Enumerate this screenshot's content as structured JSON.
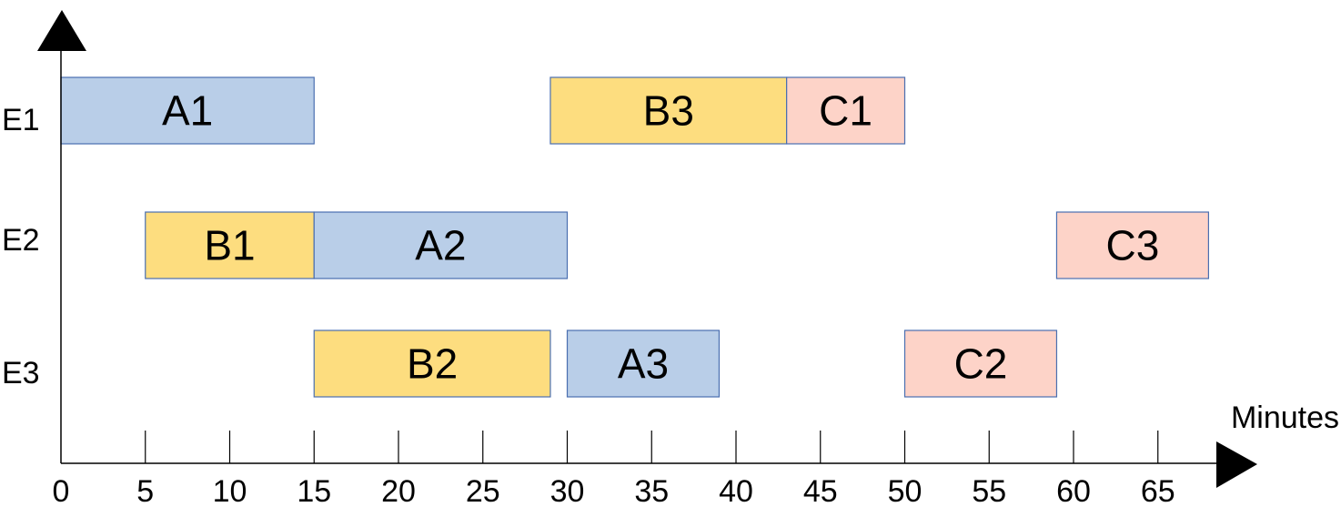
{
  "chart_data": {
    "type": "gantt",
    "xlabel": "Minutes",
    "ylabel": "",
    "rows": [
      "E1",
      "E2",
      "E3"
    ],
    "x_ticks": [
      0,
      5,
      10,
      15,
      20,
      25,
      30,
      35,
      40,
      45,
      50,
      55,
      60,
      65
    ],
    "xlim": [
      0,
      69.4
    ],
    "grid": false,
    "colors": {
      "A": "#b9cee8",
      "B": "#fddd7f",
      "C": "#fdd3c8",
      "border": "#4a6fb0"
    },
    "tasks": [
      {
        "label": "A1",
        "row": "E1",
        "start": 0,
        "end": 15,
        "group": "A"
      },
      {
        "label": "B3",
        "row": "E1",
        "start": 29,
        "end": 43,
        "group": "B"
      },
      {
        "label": "C1",
        "row": "E1",
        "start": 43,
        "end": 50,
        "group": "C"
      },
      {
        "label": "B1",
        "row": "E2",
        "start": 5,
        "end": 15,
        "group": "B"
      },
      {
        "label": "A2",
        "row": "E2",
        "start": 15,
        "end": 30,
        "group": "A"
      },
      {
        "label": "C3",
        "row": "E2",
        "start": 59,
        "end": 68,
        "group": "C"
      },
      {
        "label": "B2",
        "row": "E3",
        "start": 15,
        "end": 29,
        "group": "B"
      },
      {
        "label": "A3",
        "row": "E3",
        "start": 30,
        "end": 39,
        "group": "A"
      },
      {
        "label": "C2",
        "row": "E3",
        "start": 50,
        "end": 59,
        "group": "C"
      }
    ]
  }
}
